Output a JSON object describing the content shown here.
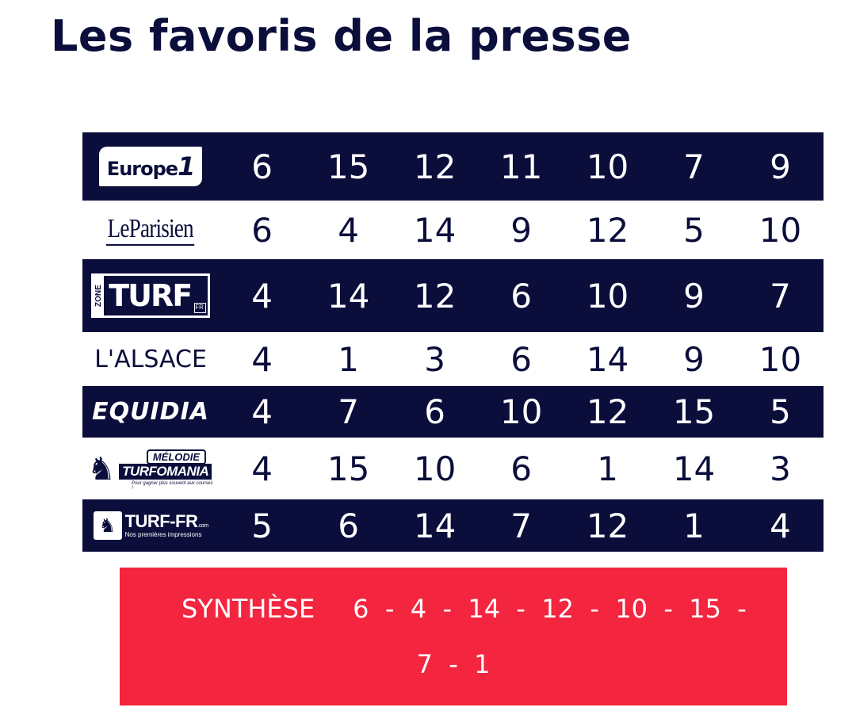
{
  "title": "Les favoris de la presse",
  "colors": {
    "navy": "#0b0d3b",
    "red": "#f3253f",
    "white": "#ffffff"
  },
  "rows": [
    {
      "source": "Europe 1",
      "logo_text": "Europe",
      "logo_num": "1",
      "numbers": [
        "6",
        "15",
        "12",
        "11",
        "10",
        "7",
        "9"
      ]
    },
    {
      "source": "Le Parisien",
      "logo_text": "LeParisien",
      "numbers": [
        "6",
        "4",
        "14",
        "9",
        "12",
        "5",
        "10"
      ]
    },
    {
      "source": "Zone Turf",
      "logo_zone": "ZONE",
      "logo_text": "TURF",
      "logo_fr": "FR",
      "numbers": [
        "4",
        "14",
        "12",
        "6",
        "10",
        "9",
        "7"
      ]
    },
    {
      "source": "L'Alsace",
      "logo_text": "L'ALSACE",
      "numbers": [
        "4",
        "1",
        "3",
        "6",
        "14",
        "9",
        "10"
      ]
    },
    {
      "source": "Equidia",
      "logo_text": "EQUIDIA",
      "numbers": [
        "4",
        "7",
        "6",
        "10",
        "12",
        "15",
        "5"
      ]
    },
    {
      "source": "Mélodie Turfomania",
      "logo_top": "MÉLODIE",
      "logo_text": "TURFOMANIA",
      "logo_tag": "Pour gagner plus souvent aux courses !",
      "numbers": [
        "4",
        "15",
        "10",
        "6",
        "1",
        "14",
        "3"
      ]
    },
    {
      "source": "Turf-FR",
      "logo_text": "TURF-FR",
      "logo_com": ".com",
      "logo_tag": "Nos premières impressions",
      "numbers": [
        "5",
        "6",
        "14",
        "7",
        "12",
        "1",
        "4"
      ]
    }
  ],
  "synthese": {
    "label": "SYNTHÈSE",
    "line1": "6  -  4  -  14  -  12  -  10  -  15  -",
    "line2": "7  -  1"
  }
}
